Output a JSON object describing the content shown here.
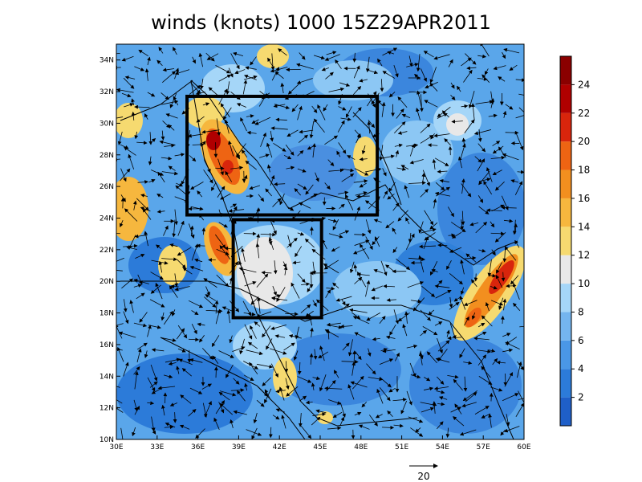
{
  "title": "winds (knots) 1000 15Z29APR2011",
  "map": {
    "lon_range": [
      30,
      60
    ],
    "lat_range": [
      10,
      35
    ],
    "x_tick_labels": [
      "30E",
      "33E",
      "36E",
      "39E",
      "42E",
      "45E",
      "48E",
      "51E",
      "54E",
      "57E",
      "60E"
    ],
    "y_tick_labels": [
      "10N",
      "12N",
      "14N",
      "16N",
      "18N",
      "20N",
      "22N",
      "24N",
      "26N",
      "28N",
      "30N",
      "32N",
      "34N"
    ],
    "x_tick_values": [
      30,
      33,
      36,
      39,
      42,
      45,
      48,
      51,
      54,
      57,
      60
    ],
    "y_tick_values": [
      10,
      12,
      14,
      16,
      18,
      20,
      22,
      24,
      26,
      28,
      30,
      32,
      34
    ],
    "boxes": [
      {
        "name": "box-north",
        "lon": [
          35.2,
          49.2
        ],
        "lat": [
          24.2,
          31.7
        ]
      },
      {
        "name": "box-south",
        "lon": [
          38.6,
          45.1
        ],
        "lat": [
          17.7,
          23.9
        ]
      }
    ]
  },
  "colorbar": {
    "labels": [
      "2",
      "4",
      "6",
      "8",
      "10",
      "12",
      "14",
      "16",
      "18",
      "20",
      "22",
      "24"
    ],
    "colors": [
      "#1f5fc8",
      "#2c7bd9",
      "#4a97e6",
      "#74b5ef",
      "#a5d6f8",
      "#e8e8e8",
      "#f6da70",
      "#f6b73e",
      "#f28f1f",
      "#ee6413",
      "#d8250c",
      "#b00000",
      "#8a0000"
    ]
  },
  "reference_vector": {
    "label": "20"
  }
}
